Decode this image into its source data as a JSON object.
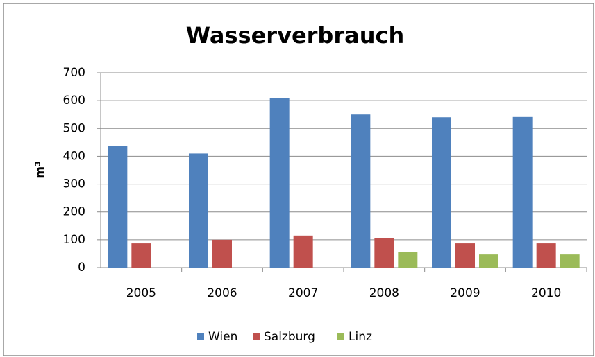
{
  "chart_data": {
    "type": "bar",
    "title": "Wasserverbrauch",
    "y_label": "m³",
    "categories": [
      "2005",
      "2006",
      "2007",
      "2008",
      "2009",
      "2010"
    ],
    "series": [
      {
        "name": "Wien",
        "color": "#4f81bd",
        "values": [
          438,
          410,
          610,
          550,
          540,
          541
        ]
      },
      {
        "name": "Salzburg",
        "color": "#c0504d",
        "values": [
          87,
          100,
          115,
          105,
          87,
          87
        ]
      },
      {
        "name": "Linz",
        "color": "#9bbb59",
        "values": [
          null,
          null,
          null,
          57,
          47,
          47
        ]
      }
    ],
    "ylim": [
      0,
      700
    ],
    "yticks": [
      0,
      100,
      200,
      300,
      400,
      500,
      600,
      700
    ],
    "grid": true,
    "legend": "bottom"
  }
}
